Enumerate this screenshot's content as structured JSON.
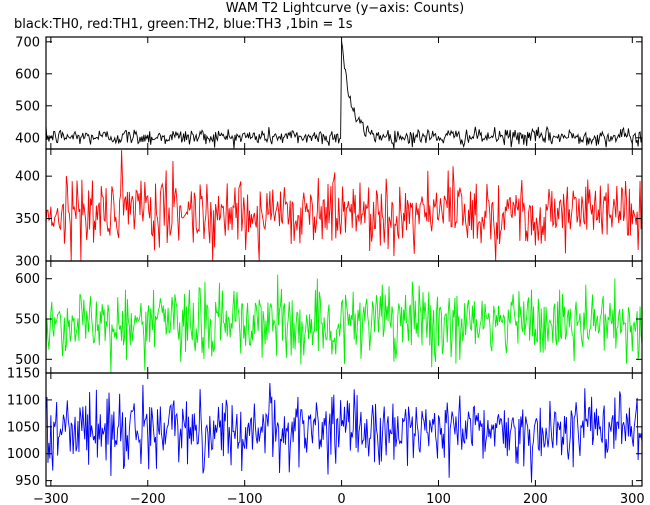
{
  "title": "WAM T2 Lightcurve (y−axis: Counts)",
  "subtitle": "black:TH0, red:TH1, green:TH2, blue:TH3 ,1bin = 1s",
  "chart_data": {
    "type": "line",
    "xlim": [
      -305,
      310
    ],
    "x_ticks": [
      -300,
      -200,
      -100,
      0,
      100,
      200,
      300
    ],
    "x_tick_labels": [
      "−300",
      "−200",
      "−100",
      "0",
      "100",
      "200",
      "300"
    ],
    "bin_seconds": 1,
    "panels": [
      {
        "name": "TH0",
        "color": "#000000",
        "ylim": [
          365,
          715
        ],
        "y_ticks": [
          400,
          500,
          600,
          700
        ],
        "baseline": 403,
        "noise": 13,
        "burst": {
          "start_x": 0,
          "peak": 715,
          "decay_s": 9
        }
      },
      {
        "name": "TH1",
        "color": "#ff0000",
        "ylim": [
          300,
          432
        ],
        "y_ticks": [
          300,
          350,
          400
        ],
        "baseline": 358,
        "noise": 21
      },
      {
        "name": "TH2",
        "color": "#00ee00",
        "ylim": [
          483,
          622
        ],
        "y_ticks": [
          500,
          550,
          600
        ],
        "baseline": 545,
        "noise": 23
      },
      {
        "name": "TH3",
        "color": "#0000ff",
        "ylim": [
          940,
          1150
        ],
        "y_ticks": [
          950,
          1000,
          1050,
          1100,
          1150
        ],
        "baseline": 1045,
        "noise": 32
      }
    ]
  }
}
